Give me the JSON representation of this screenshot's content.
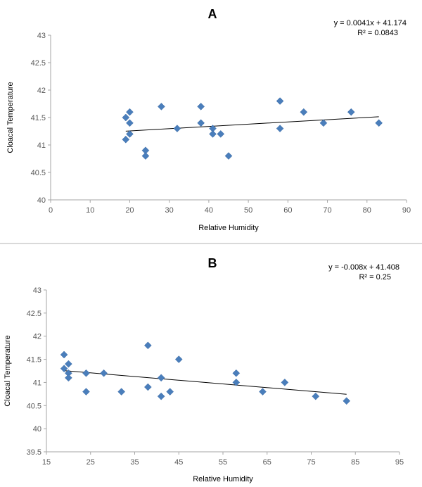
{
  "chart_data": [
    {
      "type": "scatter",
      "title": "A",
      "xlabel": "Relative Humidity",
      "ylabel": "Cloacal Temperature",
      "xlim": [
        0,
        90
      ],
      "ylim": [
        40,
        43
      ],
      "xticks": [
        0,
        10,
        20,
        30,
        40,
        50,
        60,
        70,
        80,
        90
      ],
      "yticks": [
        40,
        40.5,
        41,
        41.5,
        42,
        42.5,
        43
      ],
      "grid": false,
      "trendline": {
        "equation": "y = 0.0041x + 41.174",
        "r2": "R² = 0.0843",
        "x": [
          19,
          83
        ],
        "y": [
          41.252,
          41.514
        ]
      },
      "series": [
        {
          "color": "#4a7ebb",
          "points": [
            [
              19,
              41.5
            ],
            [
              19,
              41.1
            ],
            [
              20,
              41.6
            ],
            [
              20,
              41.4
            ],
            [
              20,
              41.2
            ],
            [
              24,
              40.9
            ],
            [
              24,
              40.8
            ],
            [
              28,
              41.7
            ],
            [
              32,
              41.3
            ],
            [
              38,
              41.7
            ],
            [
              38,
              41.4
            ],
            [
              41,
              41.3
            ],
            [
              41,
              41.2
            ],
            [
              43,
              41.2
            ],
            [
              45,
              40.8
            ],
            [
              58,
              41.8
            ],
            [
              58,
              41.3
            ],
            [
              64,
              41.6
            ],
            [
              69,
              41.4
            ],
            [
              76,
              41.6
            ],
            [
              83,
              41.4
            ]
          ]
        }
      ]
    },
    {
      "type": "scatter",
      "title": "B",
      "xlabel": "Relative Humidity",
      "ylabel": "Cloacal Temperature",
      "xlim": [
        15,
        95
      ],
      "ylim": [
        39.5,
        43
      ],
      "xticks": [
        15,
        25,
        35,
        45,
        55,
        65,
        75,
        85,
        95
      ],
      "yticks": [
        39.5,
        40,
        40.5,
        41,
        41.5,
        42,
        42.5,
        43
      ],
      "grid": false,
      "trendline": {
        "equation": "y = -0.008x + 41.408",
        "r2": "R² = 0.25",
        "x": [
          19,
          83
        ],
        "y": [
          41.256,
          40.744
        ]
      },
      "series": [
        {
          "color": "#4a7ebb",
          "points": [
            [
              19,
              41.6
            ],
            [
              19,
              41.3
            ],
            [
              20,
              41.4
            ],
            [
              20,
              41.2
            ],
            [
              20,
              41.1
            ],
            [
              24,
              41.2
            ],
            [
              24,
              40.8
            ],
            [
              28,
              41.2
            ],
            [
              32,
              40.8
            ],
            [
              38,
              41.8
            ],
            [
              38,
              40.9
            ],
            [
              41,
              41.1
            ],
            [
              41,
              40.7
            ],
            [
              43,
              40.8
            ],
            [
              45,
              41.5
            ],
            [
              58,
              41.2
            ],
            [
              58,
              41.0
            ],
            [
              64,
              40.8
            ],
            [
              69,
              41.0
            ],
            [
              76,
              40.7
            ],
            [
              83,
              40.6
            ]
          ]
        }
      ]
    }
  ]
}
